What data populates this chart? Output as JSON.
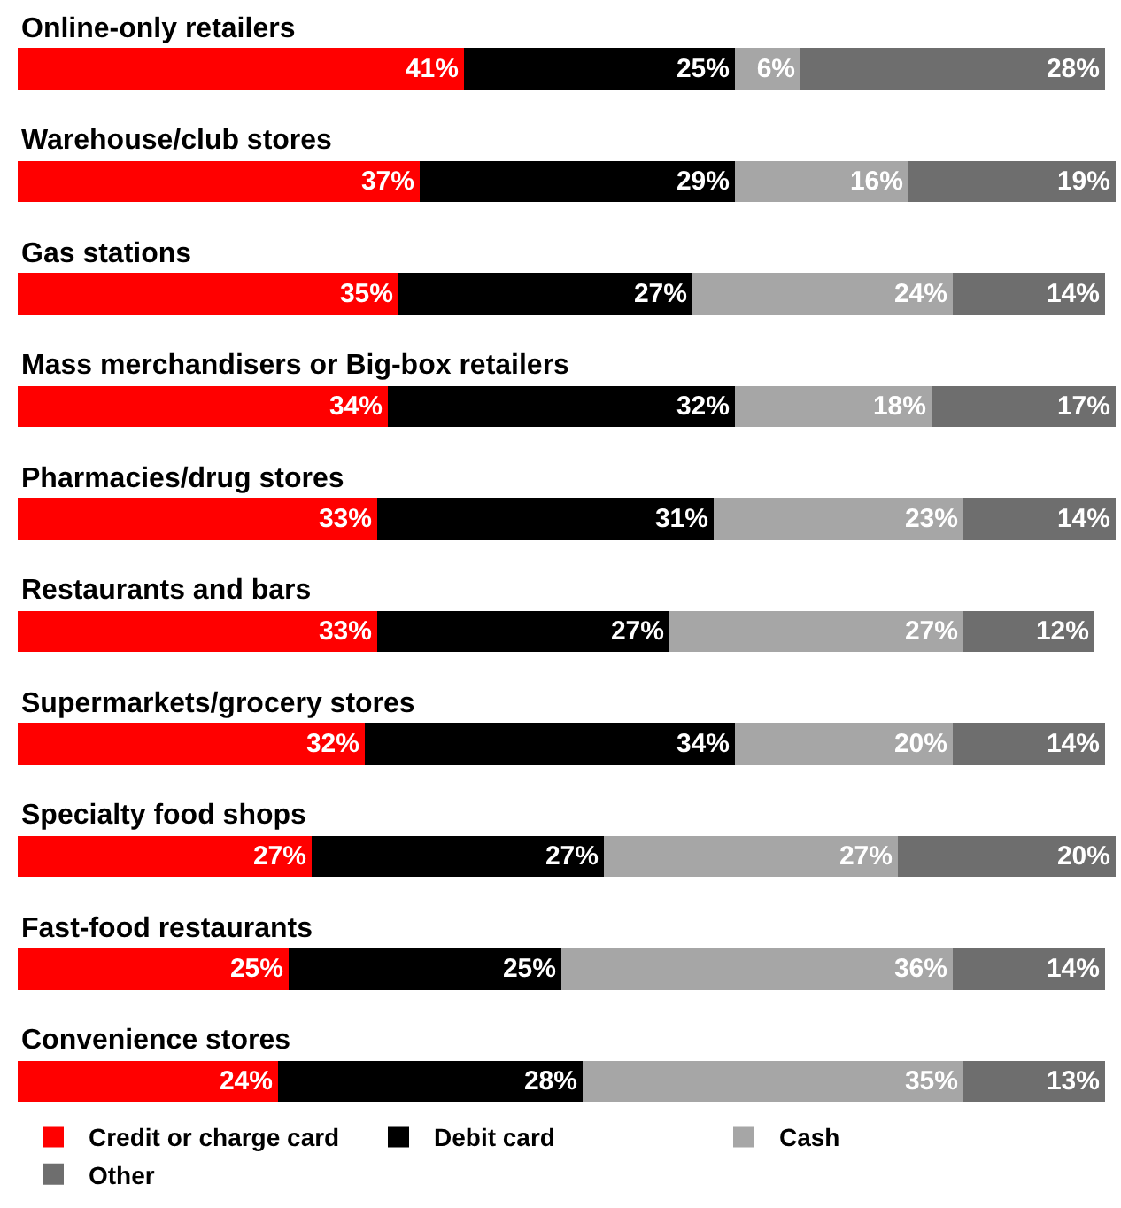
{
  "chart_data": {
    "type": "bar",
    "orientation": "horizontal",
    "stacked": true,
    "legend": "bottom",
    "categories": [
      "Online-only retailers",
      "Warehouse/club stores",
      "Gas stations",
      "Mass merchandisers or Big-box retailers",
      "Pharmacies/drug stores",
      "Restaurants and bars",
      "Supermarkets/grocery stores",
      "Specialty food shops",
      "Fast-food restaurants",
      "Convenience stores"
    ],
    "series": [
      {
        "name": "Credit or charge card",
        "color": "#ff0000",
        "values": [
          41,
          37,
          35,
          34,
          33,
          33,
          32,
          27,
          25,
          24
        ],
        "value_labels": [
          "41%",
          "37%",
          "35%",
          "34%",
          "33%",
          "33%",
          "32%",
          "27%",
          "25%",
          "24%"
        ]
      },
      {
        "name": "Debit card",
        "color": "#000000",
        "values": [
          25,
          29,
          27,
          32,
          31,
          27,
          34,
          27,
          25,
          28
        ],
        "value_labels": [
          "25%",
          "29%",
          "27%",
          "32%",
          "31%",
          "27%",
          "34%",
          "27%",
          "25%",
          "28%"
        ]
      },
      {
        "name": "Cash",
        "color": "#a6a6a6",
        "values": [
          6,
          16,
          24,
          18,
          23,
          27,
          20,
          27,
          36,
          35
        ],
        "value_labels": [
          "6%",
          "16%",
          "24%",
          "18%",
          "23%",
          "27%",
          "20%",
          "27%",
          "36%",
          "35%"
        ]
      },
      {
        "name": "Other",
        "color": "#6e6e6e",
        "values": [
          28,
          19,
          14,
          17,
          14,
          12,
          14,
          20,
          14,
          13
        ],
        "value_labels": [
          "28%",
          "19%",
          "14%",
          "17%",
          "14%",
          "12%",
          "14%",
          "20%",
          "14%",
          "13%"
        ]
      }
    ]
  }
}
